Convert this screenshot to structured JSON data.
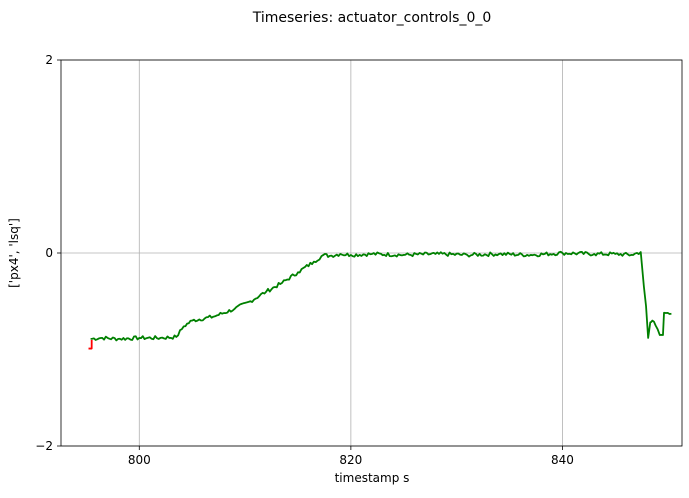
{
  "chart_data": {
    "type": "line",
    "title": "Timeseries: actuator_controls_0_0",
    "xlabel": "timestamp s",
    "ylabel": "['px4', 'lsq']",
    "xlim": [
      792.6,
      851.3
    ],
    "ylim": [
      -2,
      2
    ],
    "x_ticks": [
      800,
      820,
      840
    ],
    "y_ticks": [
      -2,
      0,
      2
    ],
    "x_tick_labels": [
      "800",
      "820",
      "840"
    ],
    "y_tick_labels": [
      "−2",
      "0",
      "2"
    ],
    "grid": true,
    "legend": "none",
    "series": [
      {
        "color": "#ff0000",
        "x": [
          795.2,
          795.5,
          795.5
        ],
        "y": [
          -0.99,
          -0.99,
          -0.9
        ]
      },
      {
        "color": "#008000",
        "x": [
          795.4,
          796.5,
          798.0,
          800.0,
          802.0,
          803.5,
          804.2,
          805.0,
          807.0,
          809.0,
          810.5,
          812.0,
          813.5,
          815.0,
          816.5,
          817.4,
          818.0,
          819.0,
          820.0,
          822.0,
          825.0,
          828.0,
          831.0,
          834.0,
          837.0,
          840.0,
          843.0,
          845.0,
          846.5,
          847.4,
          847.7,
          847.9,
          848.1,
          848.3,
          848.5,
          848.8,
          849.2,
          849.5,
          849.6,
          850.3
        ],
        "y": [
          -0.89,
          -0.88,
          -0.89,
          -0.88,
          -0.88,
          -0.87,
          -0.76,
          -0.7,
          -0.66,
          -0.58,
          -0.5,
          -0.4,
          -0.31,
          -0.2,
          -0.09,
          -0.02,
          -0.03,
          -0.01,
          -0.02,
          -0.01,
          -0.02,
          -0.01,
          -0.02,
          -0.01,
          -0.02,
          0.0,
          -0.01,
          -0.01,
          -0.02,
          0.01,
          -0.35,
          -0.55,
          -0.88,
          -0.72,
          -0.7,
          -0.75,
          -0.85,
          -0.85,
          -0.62,
          -0.63
        ]
      }
    ]
  }
}
